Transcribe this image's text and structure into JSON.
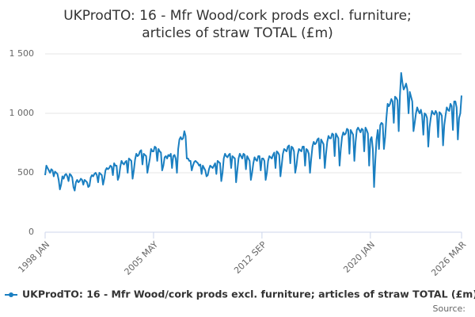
{
  "chart_data": {
    "type": "line",
    "title": [
      "UKProdTO: 16 - Mfr Wood/cork prods excl. furniture;",
      "articles of straw TOTAL (£m)"
    ],
    "series": [
      {
        "name": "UKProdTO: 16 - Mfr Wood/cork prods excl. furniture; articles of straw TOTAL (£m)",
        "color": "#1a7fc1",
        "values": [
          480,
          560,
          540,
          520,
          500,
          530,
          520,
          470,
          510,
          500,
          490,
          440,
          360,
          400,
          470,
          450,
          480,
          490,
          470,
          430,
          490,
          480,
          460,
          380,
          350,
          420,
          440,
          420,
          430,
          450,
          440,
          400,
          440,
          430,
          420,
          380,
          390,
          460,
          480,
          470,
          490,
          500,
          480,
          420,
          500,
          490,
          480,
          400,
          450,
          520,
          540,
          530,
          540,
          560,
          550,
          480,
          580,
          560,
          560,
          440,
          470,
          550,
          600,
          580,
          570,
          590,
          600,
          500,
          620,
          610,
          600,
          450,
          520,
          610,
          660,
          640,
          650,
          680,
          690,
          570,
          660,
          650,
          640,
          500,
          560,
          620,
          700,
          680,
          680,
          720,
          710,
          600,
          700,
          680,
          670,
          520,
          560,
          630,
          640,
          620,
          650,
          640,
          660,
          540,
          640,
          650,
          620,
          500,
          700,
          780,
          800,
          780,
          790,
          850,
          810,
          620,
          620,
          600,
          600,
          520,
          560,
          590,
          600,
          590,
          580,
          560,
          570,
          490,
          560,
          540,
          520,
          470,
          480,
          530,
          560,
          550,
          540,
          560,
          580,
          490,
          600,
          590,
          580,
          430,
          500,
          620,
          660,
          640,
          630,
          650,
          660,
          540,
          640,
          630,
          620,
          420,
          520,
          620,
          660,
          640,
          620,
          660,
          650,
          530,
          640,
          620,
          600,
          440,
          500,
          580,
          630,
          610,
          600,
          640,
          640,
          520,
          620,
          620,
          600,
          440,
          500,
          600,
          640,
          630,
          620,
          650,
          670,
          540,
          680,
          670,
          650,
          470,
          560,
          660,
          700,
          690,
          680,
          720,
          730,
          580,
          720,
          710,
          680,
          500,
          560,
          650,
          700,
          690,
          680,
          720,
          720,
          560,
          700,
          690,
          660,
          500,
          620,
          720,
          760,
          740,
          750,
          780,
          790,
          620,
          780,
          760,
          740,
          540,
          660,
          760,
          810,
          790,
          790,
          830,
          820,
          640,
          830,
          810,
          790,
          560,
          700,
          800,
          840,
          820,
          830,
          870,
          860,
          660,
          860,
          840,
          820,
          600,
          760,
          860,
          880,
          860,
          840,
          870,
          860,
          680,
          880,
          860,
          830,
          560,
          780,
          800,
          700,
          380,
          600,
          780,
          860,
          700,
          900,
          920,
          910,
          700,
          800,
          960,
          1080,
          1060,
          1080,
          1120,
          1100,
          920,
          1140,
          1130,
          1110,
          850,
          1150,
          1340,
          1260,
          1200,
          1220,
          1250,
          1200,
          1000,
          1180,
          1140,
          1100,
          850,
          920,
          1000,
          1050,
          1020,
          1000,
          1030,
          980,
          820,
          1000,
          990,
          960,
          720,
          880,
          960,
          1020,
          1000,
          990,
          1020,
          1000,
          800,
          1010,
          1000,
          980,
          730,
          900,
          980,
          1050,
          1030,
          1020,
          1080,
          1060,
          860,
          1100,
          1100,
          1050,
          780,
          960,
          1000,
          1150
        ]
      }
    ],
    "xlim": [
      0,
      338
    ],
    "xticks": [
      {
        "value": 0,
        "label": "1998 JAN"
      },
      {
        "value": 88,
        "label": "2005 MAY"
      },
      {
        "value": 176,
        "label": "2012 SEP"
      },
      {
        "value": 264,
        "label": "2020 JAN"
      },
      {
        "value": 338,
        "label": "2026 MAR"
      }
    ],
    "ylim": [
      0,
      1500
    ],
    "yticks": [
      0,
      {
        "value": 500,
        "label": "500"
      },
      {
        "value": 1000,
        "label": "1 000"
      },
      {
        "value": 1500,
        "label": "1 500"
      }
    ],
    "grid": true,
    "legend": "bottom",
    "source": "Source:"
  }
}
